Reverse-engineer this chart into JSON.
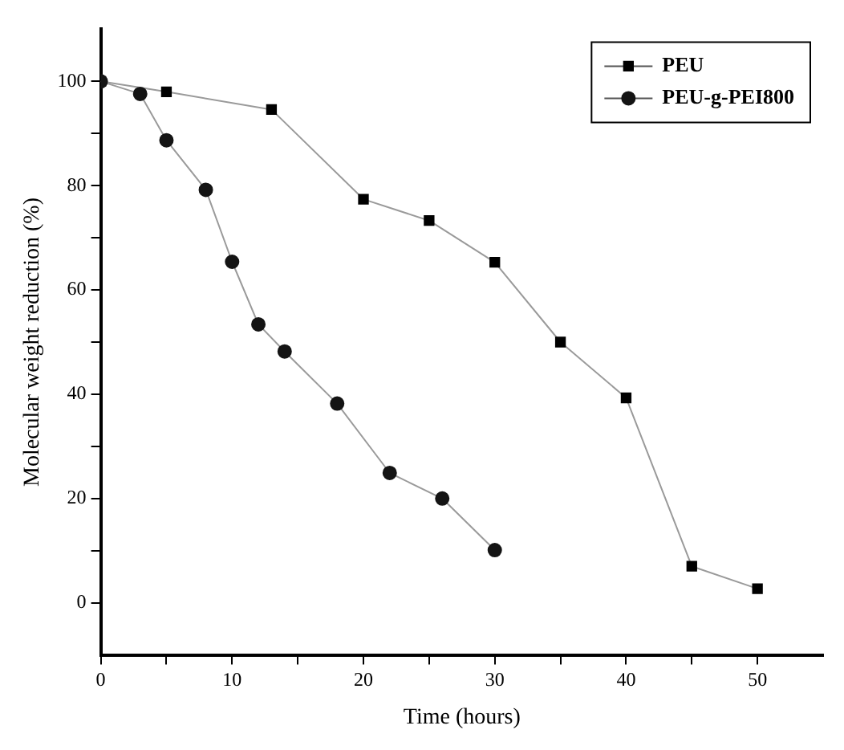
{
  "chart_data": {
    "type": "line",
    "xlabel": "Time (hours)",
    "ylabel": "Molecular weight reduction (%)",
    "xlim": [
      0,
      55
    ],
    "ylim": [
      -10,
      110
    ],
    "xticks": [
      0,
      {
        "value": 5,
        "label": null
      },
      10,
      {
        "value": 15,
        "label": null
      },
      20,
      {
        "value": 25,
        "label": null
      },
      30,
      {
        "value": 35,
        "label": null
      },
      40,
      {
        "value": 45,
        "label": null
      },
      50
    ],
    "yticks": [
      0,
      {
        "value": 10,
        "label": null
      },
      20,
      {
        "value": 30,
        "label": null
      },
      40,
      {
        "value": 50,
        "label": null
      },
      60,
      {
        "value": 70,
        "label": null
      },
      80,
      {
        "value": 90,
        "label": null
      },
      100
    ],
    "grid": false,
    "legend": "top right",
    "line_style": "solid",
    "series": [
      {
        "name": "PEU",
        "color": "#000000",
        "marker": "square",
        "x": [
          0,
          5,
          13,
          20,
          25,
          30,
          35,
          40,
          45,
          50
        ],
        "values": [
          100,
          98,
          94.6,
          77.4,
          73.3,
          65.3,
          50,
          39.3,
          7,
          2.7
        ]
      },
      {
        "name": "PEU-g-PEI800",
        "color": "#141414",
        "marker": "circle",
        "x": [
          0,
          3,
          5,
          8,
          10,
          12,
          14,
          18,
          22,
          26,
          30
        ],
        "values": [
          100,
          97.6,
          88.7,
          79.2,
          65.4,
          53.4,
          48.2,
          38.2,
          24.9,
          20,
          10.1
        ]
      }
    ]
  }
}
